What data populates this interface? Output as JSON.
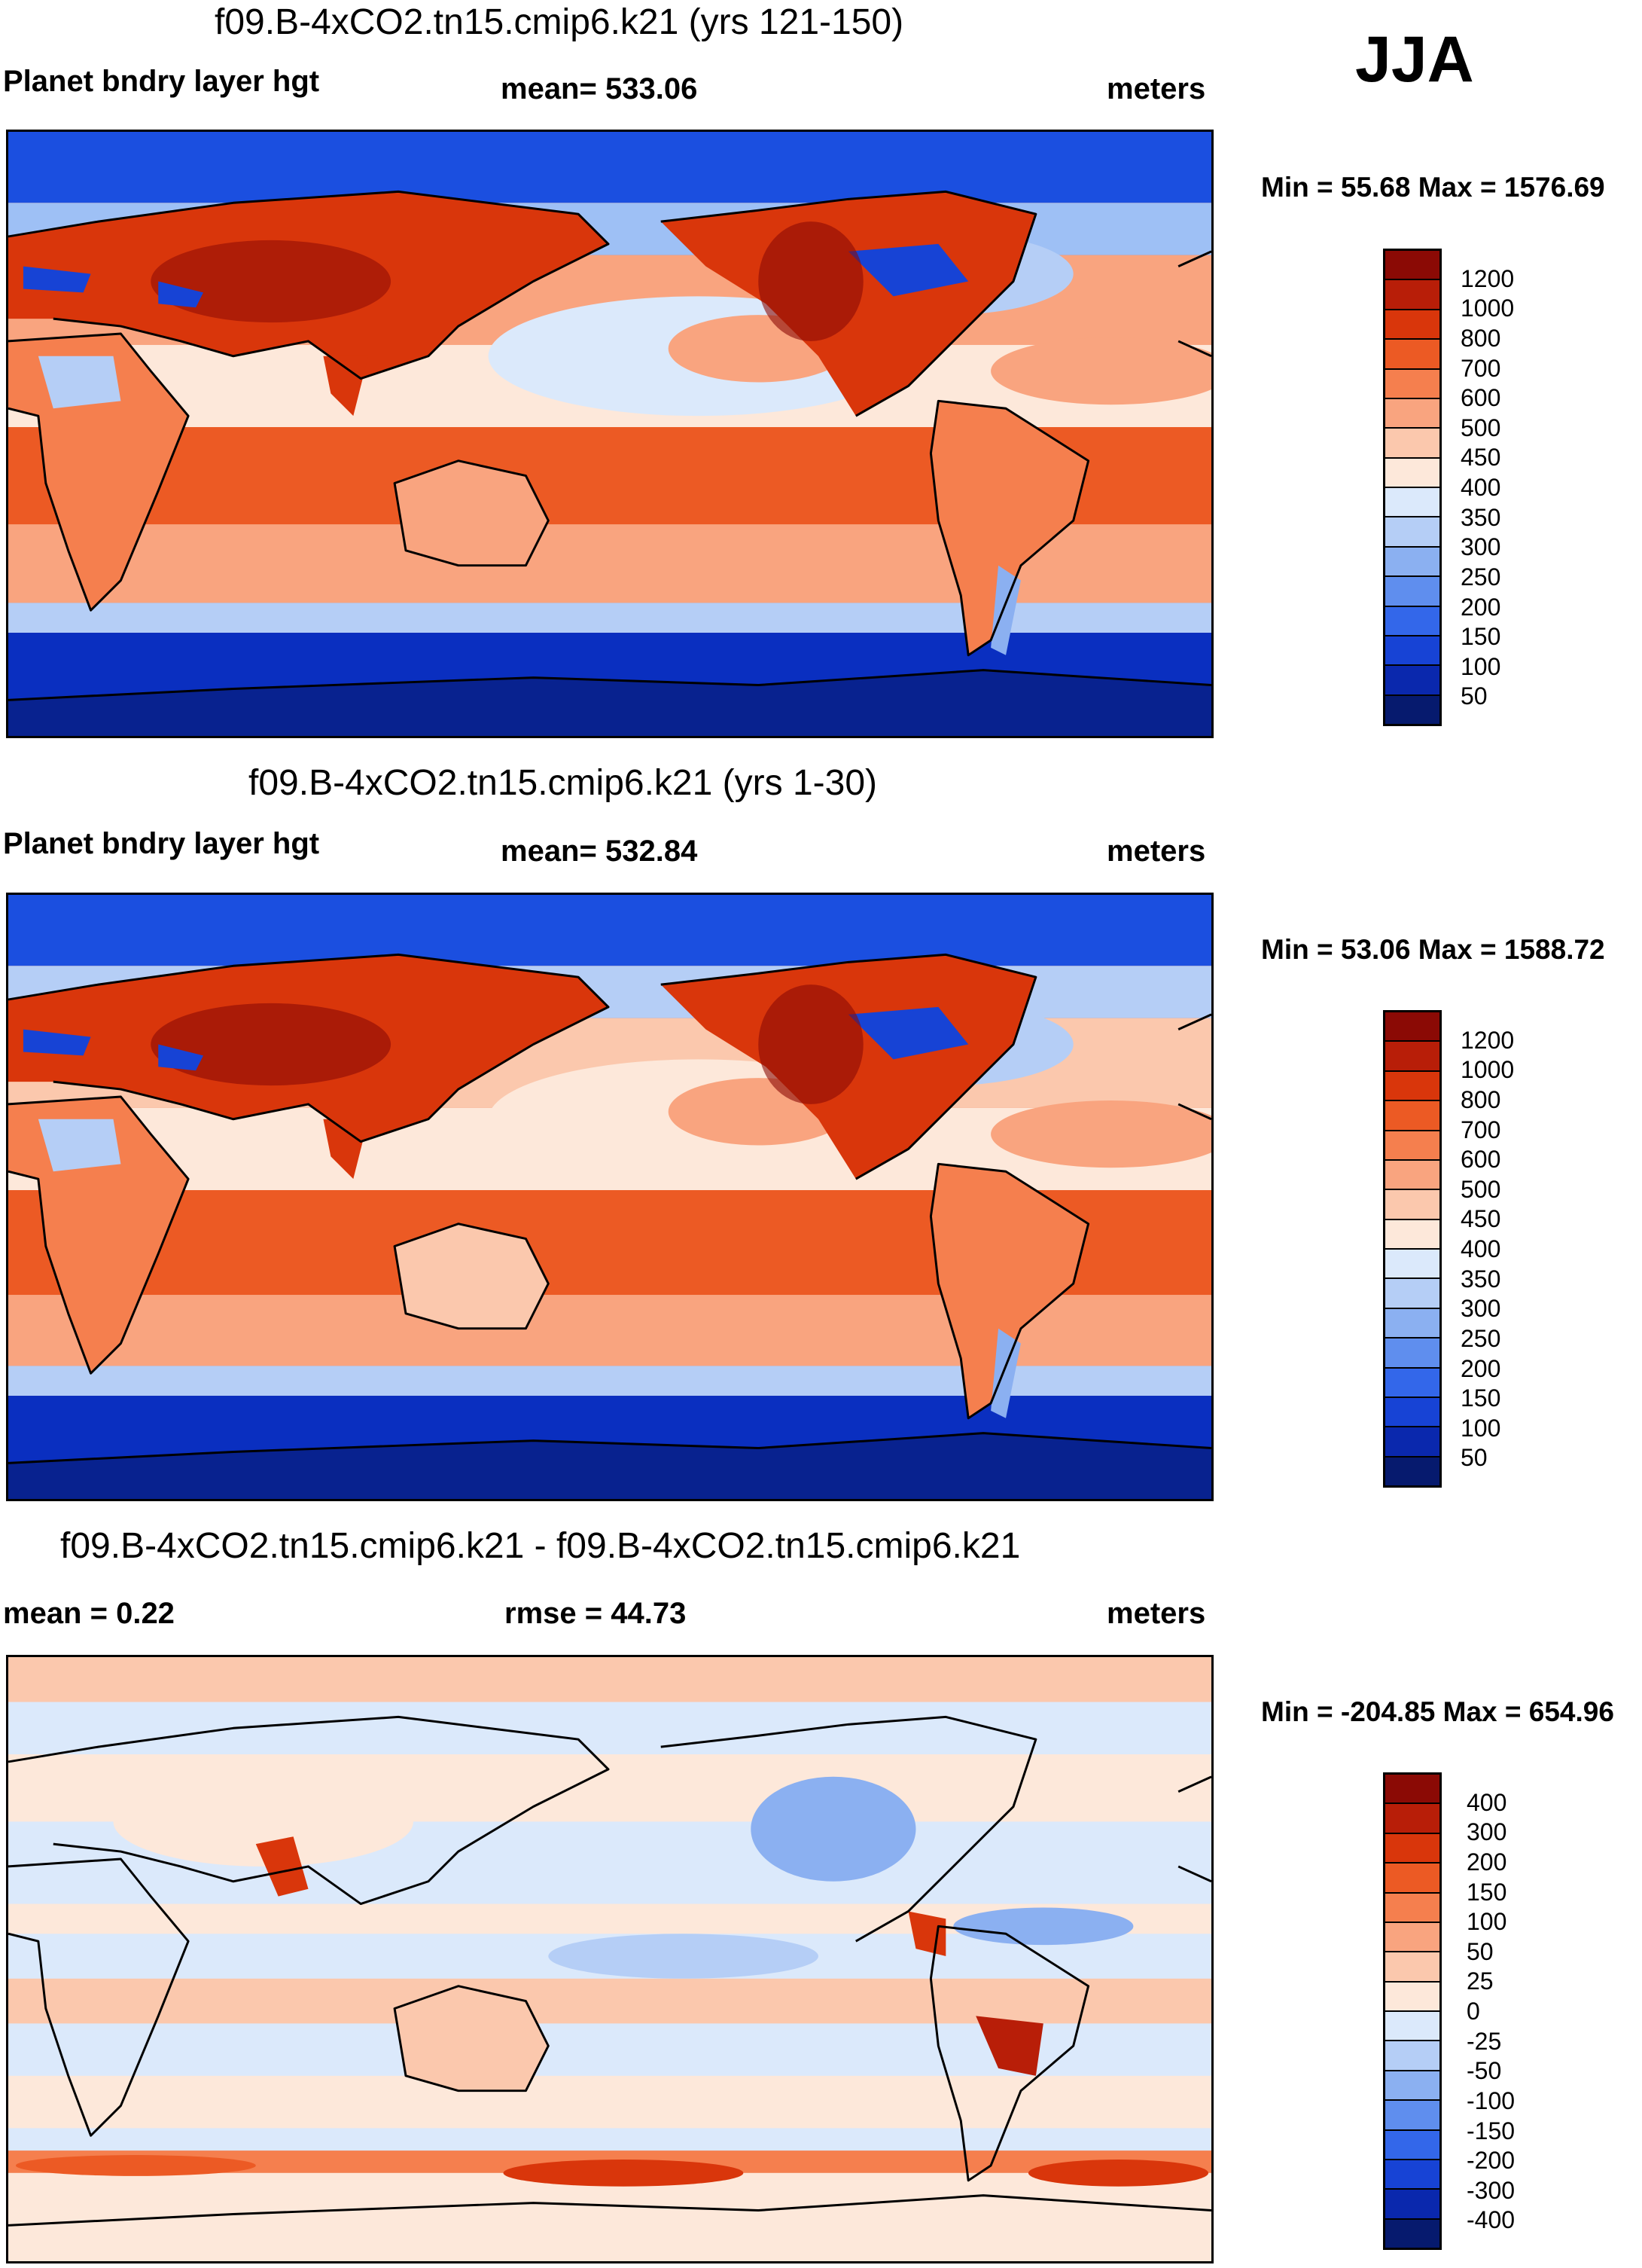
{
  "season": "JJA",
  "panels": [
    {
      "id": "panel-1",
      "title": "f09.B-4xCO2.tn15.cmip6.k21 (yrs 121-150)",
      "left_label": "Planet bndry layer hgt",
      "center_label": "mean= 533.06",
      "units": "meters",
      "minmax": "Min =  55.68 Max = 1576.69",
      "field_mean": 533.06,
      "field_min": 55.68,
      "field_max": 1576.69
    },
    {
      "id": "panel-2",
      "title": "f09.B-4xCO2.tn15.cmip6.k21 (yrs 1-30)",
      "left_label": "Planet bndry layer hgt",
      "center_label": "mean= 532.84",
      "units": "meters",
      "minmax": "Min =  53.06 Max = 1588.72",
      "field_mean": 532.84,
      "field_min": 53.06,
      "field_max": 1588.72
    },
    {
      "id": "panel-3",
      "title": "f09.B-4xCO2.tn15.cmip6.k21 - f09.B-4xCO2.tn15.cmip6.k21",
      "left_label": "mean =   0.22",
      "center_label": "rmse =  44.73",
      "units": "meters",
      "minmax": "Min = -204.85 Max = 654.96",
      "field_mean": 0.22,
      "field_rmse": 44.73,
      "field_min": -204.85,
      "field_max": 654.96
    }
  ],
  "colorbars": {
    "absolute": {
      "labels": [
        "1200",
        "1000",
        "800",
        "700",
        "600",
        "500",
        "450",
        "400",
        "350",
        "300",
        "250",
        "200",
        "150",
        "100",
        "50"
      ],
      "colors": [
        "#8b0a05",
        "#b81e08",
        "#d9360b",
        "#ec5a24",
        "#f57f4e",
        "#f9a47f",
        "#fbc8ad",
        "#fde8da",
        "#dbe9fb",
        "#b5cef6",
        "#8bb0f1",
        "#5f8eee",
        "#3367ea",
        "#1743d5",
        "#0a28ad",
        "#061a6e"
      ]
    },
    "difference": {
      "labels": [
        "400",
        "300",
        "200",
        "150",
        "100",
        "50",
        "25",
        "0",
        "-25",
        "-50",
        "-100",
        "-150",
        "-200",
        "-300",
        "-400"
      ],
      "colors": [
        "#8b0a05",
        "#b81e08",
        "#d9360b",
        "#ec5a24",
        "#f57f4e",
        "#f9a47f",
        "#fbc8ad",
        "#fde8da",
        "#dbe9fb",
        "#b5cef6",
        "#8bb0f1",
        "#5f8eee",
        "#3367ea",
        "#1743d5",
        "#0a28ad",
        "#061a6e"
      ]
    }
  }
}
